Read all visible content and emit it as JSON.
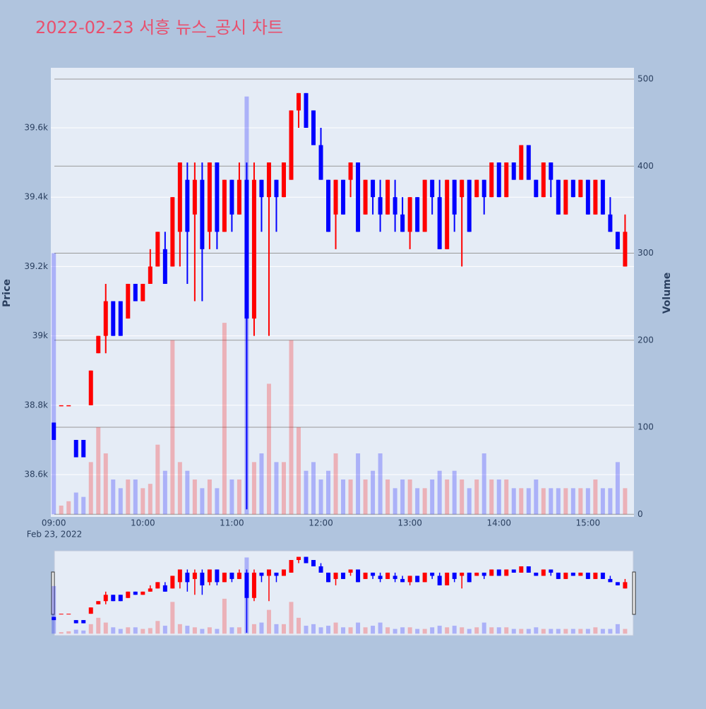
{
  "chart_data": {
    "type": "candlestick",
    "title": "2022-02-23 서흥 뉴스_공시 차트",
    "x": [
      "09:00",
      "09:05",
      "09:10",
      "09:15",
      "09:20",
      "09:25",
      "09:30",
      "09:35",
      "09:40",
      "09:45",
      "09:50",
      "09:55",
      "10:00",
      "10:05",
      "10:10",
      "10:15",
      "10:20",
      "10:25",
      "10:30",
      "10:35",
      "10:40",
      "10:45",
      "10:50",
      "10:55",
      "11:00",
      "11:05",
      "11:10",
      "11:15",
      "11:20",
      "11:25",
      "11:30",
      "11:35",
      "11:40",
      "11:45",
      "11:50",
      "11:55",
      "12:00",
      "12:05",
      "12:10",
      "12:15",
      "12:20",
      "12:25",
      "12:30",
      "12:35",
      "12:40",
      "12:45",
      "12:50",
      "12:55",
      "13:00",
      "13:05",
      "13:10",
      "13:15",
      "13:20",
      "13:25",
      "13:30",
      "13:35",
      "13:40",
      "13:45",
      "13:50",
      "13:55",
      "14:00",
      "14:05",
      "14:10",
      "14:15",
      "14:20",
      "14:25",
      "14:30",
      "14:35",
      "14:40",
      "14:45",
      "14:50",
      "14:55",
      "15:00",
      "15:05",
      "15:10",
      "15:15",
      "15:20",
      "15:25"
    ],
    "open": [
      38750,
      38800,
      38800,
      38700,
      38700,
      38800,
      38950,
      39000,
      39100,
      39100,
      39050,
      39150,
      39100,
      39150,
      39200,
      39250,
      39200,
      39300,
      39450,
      39350,
      39450,
      39300,
      39500,
      39300,
      39450,
      39350,
      39450,
      39050,
      39450,
      39400,
      39450,
      39400,
      39450,
      39650,
      39700,
      39650,
      39550,
      39450,
      39350,
      39450,
      39450,
      39500,
      39350,
      39450,
      39400,
      39350,
      39400,
      39350,
      39300,
      39400,
      39300,
      39450,
      39400,
      39250,
      39450,
      39400,
      39450,
      39400,
      39450,
      39400,
      39500,
      39400,
      39500,
      39450,
      39550,
      39450,
      39400,
      39500,
      39450,
      39350,
      39450,
      39400,
      39450,
      39350,
      39450,
      39350,
      39300,
      39200
    ],
    "high": [
      38750,
      38800,
      38800,
      38700,
      38700,
      38900,
      39000,
      39150,
      39100,
      39100,
      39150,
      39150,
      39150,
      39250,
      39300,
      39300,
      39400,
      39500,
      39500,
      39500,
      39500,
      39500,
      39500,
      39450,
      39450,
      39500,
      39500,
      39500,
      39450,
      39500,
      39450,
      39500,
      39650,
      39700,
      39700,
      39650,
      39600,
      39450,
      39450,
      39450,
      39500,
      39500,
      39450,
      39450,
      39450,
      39450,
      39450,
      39400,
      39400,
      39400,
      39450,
      39450,
      39450,
      39450,
      39450,
      39450,
      39450,
      39450,
      39450,
      39500,
      39500,
      39500,
      39500,
      39550,
      39550,
      39450,
      39500,
      39500,
      39450,
      39450,
      39450,
      39450,
      39450,
      39450,
      39450,
      39400,
      39300,
      39350
    ],
    "low": [
      38700,
      38800,
      38800,
      38650,
      38650,
      38800,
      38950,
      38950,
      39000,
      39000,
      39050,
      39100,
      39100,
      39150,
      39200,
      39150,
      39200,
      39200,
      39150,
      39100,
      39100,
      39250,
      39250,
      39300,
      39300,
      39350,
      38500,
      39000,
      39300,
      39000,
      39300,
      39400,
      39450,
      39600,
      39600,
      39550,
      39450,
      39300,
      39250,
      39350,
      39400,
      39300,
      39350,
      39350,
      39300,
      39350,
      39300,
      39300,
      39250,
      39300,
      39300,
      39350,
      39250,
      39250,
      39300,
      39200,
      39300,
      39400,
      39350,
      39400,
      39400,
      39400,
      39450,
      39450,
      39450,
      39400,
      39400,
      39400,
      39350,
      39350,
      39400,
      39400,
      39350,
      39350,
      39350,
      39300,
      39250,
      39200
    ],
    "close": [
      38700,
      38800,
      38800,
      38650,
      38650,
      38900,
      39000,
      39100,
      39000,
      39000,
      39150,
      39100,
      39150,
      39200,
      39300,
      39150,
      39400,
      39500,
      39300,
      39450,
      39250,
      39500,
      39300,
      39450,
      39350,
      39450,
      39050,
      39450,
      39400,
      39500,
      39400,
      39500,
      39650,
      39700,
      39600,
      39550,
      39450,
      39300,
      39450,
      39350,
      39500,
      39300,
      39450,
      39400,
      39350,
      39450,
      39350,
      39300,
      39400,
      39300,
      39450,
      39400,
      39250,
      39450,
      39350,
      39450,
      39300,
      39450,
      39400,
      39500,
      39400,
      39500,
      39450,
      39550,
      39450,
      39400,
      39500,
      39450,
      39350,
      39450,
      39400,
      39450,
      39350,
      39450,
      39350,
      39300,
      39250,
      39300
    ],
    "volume": [
      300,
      10,
      15,
      25,
      20,
      60,
      100,
      70,
      40,
      30,
      40,
      40,
      30,
      35,
      80,
      50,
      200,
      60,
      50,
      40,
      30,
      40,
      30,
      220,
      40,
      40,
      480,
      60,
      70,
      150,
      60,
      60,
      200,
      100,
      50,
      60,
      40,
      50,
      70,
      40,
      40,
      70,
      40,
      50,
      70,
      40,
      30,
      40,
      40,
      30,
      30,
      40,
      50,
      40,
      50,
      40,
      30,
      40,
      70,
      40,
      40,
      40,
      30,
      30,
      30,
      40,
      30,
      30,
      30,
      30,
      30,
      30,
      30,
      40,
      30,
      30,
      60,
      30
    ],
    "increasing_color": "#ff0000",
    "decreasing_color": "#0000ff",
    "xlim": [
      "08:58",
      "15:31"
    ],
    "xticks": [
      "09:00",
      "10:00",
      "11:00",
      "12:00",
      "13:00",
      "14:00",
      "15:00"
    ],
    "date_label": "Feb 23, 2022",
    "ylim": [
      38478,
      39773
    ],
    "yticks": [
      {
        "value": 38600,
        "label": "38.6k"
      },
      {
        "value": 38800,
        "label": "38.8k"
      },
      {
        "value": 39000,
        "label": "39k"
      },
      {
        "value": 39200,
        "label": "39.2k"
      },
      {
        "value": 39400,
        "label": "39.4k"
      },
      {
        "value": 39600,
        "label": "39.6k"
      }
    ],
    "y2lim": [
      -3,
      513
    ],
    "y2ticks": [
      0,
      100,
      200,
      300,
      400,
      500
    ],
    "yaxis_title": "Price",
    "y2axis_title": "Volume",
    "grid": true,
    "rangeslider": true
  }
}
